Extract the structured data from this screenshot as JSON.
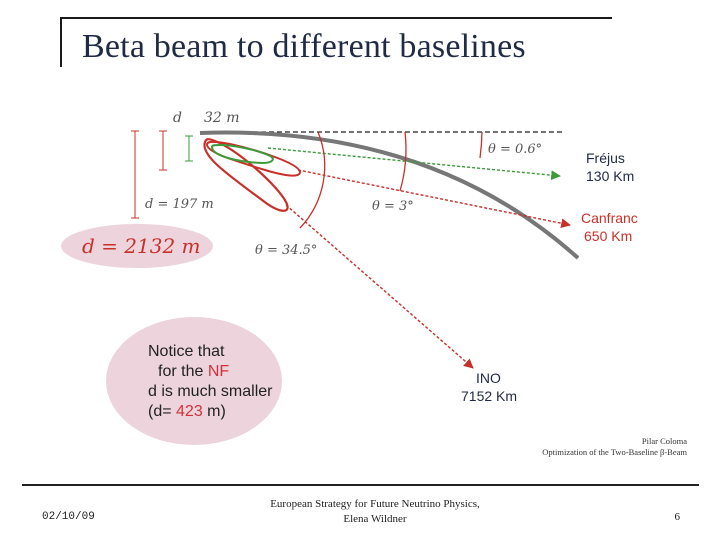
{
  "slide": {
    "title": "Beta beam to different baselines"
  },
  "diagram": {
    "labels": {
      "d": "d",
      "m32": "32 m",
      "d197": "d = 197 m",
      "d2132": "d = 2132 m",
      "theta_small": "θ = 0.6°",
      "theta_mid": "θ = 3°",
      "theta_large": "θ = 34.5°"
    },
    "sites": {
      "frejus_name": "Fréjus",
      "frejus_dist": "130 Km",
      "canfranc_name": "Canfranc",
      "canfranc_dist": "650 Km",
      "ino_name": "INO",
      "ino_dist": "7152 Km"
    },
    "notice": {
      "line1": "Notice that",
      "line2_prefix": "for the ",
      "line2_highlight": "NF",
      "line3": "d is much smaller",
      "line4_prefix": "(d= ",
      "line4_value": "423",
      "line4_suffix": " m)"
    },
    "colors": {
      "red": "#c8302a",
      "green": "#3c9a3a",
      "earth": "#777777",
      "pink_bg": "#ecd3dc",
      "highlight": "#d1323a"
    }
  },
  "credit": {
    "line1": "Pilar Coloma",
    "line2": "Optimization of the Two-Baseline β-Beam"
  },
  "footer": {
    "date": "02/10/09",
    "center_line1": "European Strategy for Future Neutrino Physics,",
    "center_line2": "Elena Wildner",
    "page": "6"
  }
}
